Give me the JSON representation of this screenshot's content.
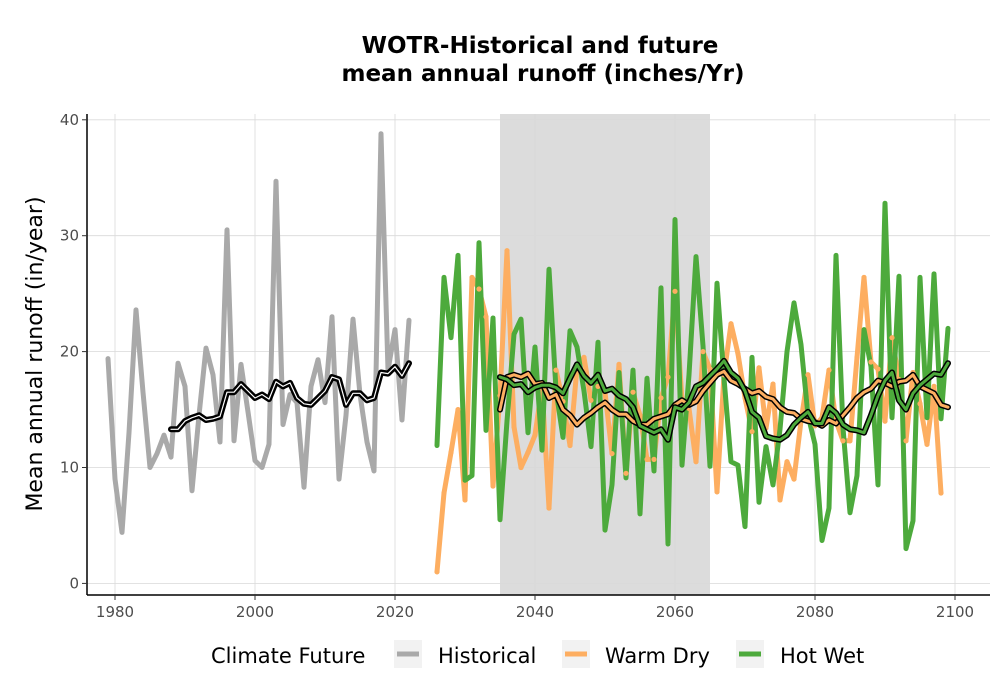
{
  "chart_data": {
    "type": "line",
    "title_line1": "WOTR-Historical and future",
    "title_line2": "mean annual runoff (inches/Yr)",
    "xlabel": "",
    "ylabel": "Mean annual runoff (in/year)",
    "xlim": [
      1976,
      2105
    ],
    "ylim": [
      -1,
      40.5
    ],
    "x_ticks": [
      1980,
      2000,
      2020,
      2040,
      2060,
      2080,
      2100
    ],
    "y_ticks": [
      0,
      10,
      20,
      30,
      40
    ],
    "grid": true,
    "highlight_period": [
      2035,
      2065
    ],
    "legend": {
      "title": "Climate Future",
      "position": "bottom",
      "entries": [
        "Historical",
        "Warm Dry",
        "Hot Wet"
      ]
    },
    "colors": {
      "Historical": "#a9a9a9",
      "Warm Dry": "#fdae61",
      "Hot Wet": "#4daa3c",
      "smooth": "#000000",
      "highlight": "#dcdcdc"
    },
    "series": [
      {
        "name": "Historical",
        "x_start": 1979,
        "values": [
          19.4,
          9,
          4.4,
          13,
          23.6,
          16.5,
          10,
          11.2,
          12.8,
          10.9,
          19,
          17,
          8,
          14.5,
          20.3,
          18,
          12.2,
          30.5,
          12.3,
          18.9,
          14.8,
          10.6,
          10,
          12,
          34.7,
          13.7,
          16.3,
          15.6,
          8.3,
          17,
          19.3,
          15.6,
          23,
          9,
          14.5,
          22.8,
          16.3,
          12.2,
          9.7,
          38.8,
          18.4,
          21.9,
          14.1,
          22.7
        ]
      },
      {
        "name": "Historical smoothed",
        "x_start": 1988,
        "values": [
          13.3,
          13.3,
          14,
          14.3,
          14.5,
          14.1,
          14.2,
          14.4,
          16.5,
          16.5,
          17.2,
          16.6,
          16,
          16.3,
          15.9,
          17.4,
          17,
          17.3,
          16,
          15.5,
          15.4,
          16,
          16.6,
          17.8,
          17.6,
          15.4,
          16.4,
          16.4,
          15.8,
          16,
          18.2,
          18.1,
          18.7,
          17.9,
          19
        ]
      },
      {
        "name": "Warm Dry",
        "x_start": 2026,
        "values": [
          1,
          7.8,
          11.3,
          15,
          7.2,
          26.4,
          25.4,
          23,
          8.4,
          16.2,
          28.7,
          13.5,
          10,
          11.3,
          12.8,
          17,
          6.5,
          18.4,
          15.7,
          11.9,
          18.6,
          19.5,
          15.8,
          17,
          16.5,
          11.2,
          18.9,
          9.5,
          16.5,
          14.5,
          10.7,
          10.7,
          16,
          17.8,
          25.2,
          15.8,
          15.1,
          10.5,
          20,
          18.5,
          7.9,
          18,
          22.4,
          19.8,
          16,
          13.1,
          18.6,
          13.4,
          17.2,
          7.2,
          10.5,
          9,
          14,
          18,
          13.6,
          14.3,
          18.4,
          14,
          12.3,
          12.3,
          19.5,
          26.4,
          19.1,
          18.5,
          14,
          21.2,
          17.6,
          12.3,
          18.2,
          15.5,
          12,
          17,
          7.8
        ]
      },
      {
        "name": "Warm Dry smoothed",
        "x_start": 2035,
        "values": [
          15,
          17.8,
          18,
          17.8,
          18.1,
          17.2,
          17.3,
          16,
          16.3,
          15,
          14.5,
          13.7,
          14.3,
          14.7,
          15.2,
          15.6,
          15,
          14.6,
          14.6,
          14,
          13.7,
          13.7,
          14.2,
          14.4,
          14.6,
          15.4,
          15.8,
          15.4,
          15.7,
          16.6,
          17.3,
          18,
          18.3,
          17.5,
          17.2,
          16.8,
          16.4,
          16.6,
          16.1,
          15.9,
          15.2,
          14.8,
          14.7,
          14.2,
          14,
          13.9,
          13.6,
          14.1,
          13.8,
          14.5,
          15.2,
          16,
          16.5,
          16.8,
          17.5,
          17.3,
          17,
          17.4,
          17.5,
          18,
          17,
          16.7,
          16.4,
          15.4,
          15.2
        ]
      },
      {
        "name": "Hot Wet",
        "x_start": 2026,
        "values": [
          11.9,
          26.4,
          21.2,
          28.3,
          8.9,
          9.3,
          29.4,
          13.2,
          22.9,
          5.5,
          14,
          21.5,
          22.8,
          13,
          20.4,
          11.5,
          27.1,
          16.7,
          12.6,
          21.8,
          20.4,
          16.6,
          11.8,
          20.8,
          4.6,
          8.5,
          18.2,
          9.1,
          18.4,
          6,
          17.7,
          9.7,
          25.5,
          3.4,
          31.4,
          10.2,
          18,
          28.2,
          20.5,
          10.1,
          25.9,
          17.7,
          10.5,
          10.2,
          4.9,
          19.5,
          7,
          11.8,
          8.5,
          13.3,
          20,
          24.2,
          20.6,
          14.5,
          12,
          3.7,
          6.5,
          28.3,
          13.4,
          6.1,
          9.3,
          21.9,
          18.7,
          8.5,
          32.8,
          14.3,
          26.5,
          3,
          5.4,
          26.4,
          14.3,
          26.7,
          14.2,
          22
        ]
      },
      {
        "name": "Hot Wet smoothed",
        "x_start": 2035,
        "values": [
          17.8,
          17.6,
          17.1,
          17.2,
          16.5,
          16.9,
          17.1,
          17.1,
          16.9,
          16.4,
          17.7,
          18.9,
          17.9,
          17.3,
          18,
          16.6,
          16.8,
          16.2,
          15.9,
          15.2,
          13.6,
          13.3,
          13,
          13.3,
          12.4,
          15.2,
          15,
          15.6,
          17,
          17.3,
          17.9,
          18.5,
          19.2,
          18.2,
          17.7,
          16.6,
          14.8,
          14.3,
          12.7,
          12.5,
          12.4,
          12.8,
          13.7,
          14.3,
          14.8,
          13.8,
          13.8,
          15.2,
          14.7,
          13.7,
          13.3,
          13.2,
          13,
          14.5,
          16.2,
          17.5,
          18.2,
          15.8,
          15,
          16.4,
          17.1,
          17.6,
          18.1,
          18,
          19
        ]
      }
    ]
  }
}
